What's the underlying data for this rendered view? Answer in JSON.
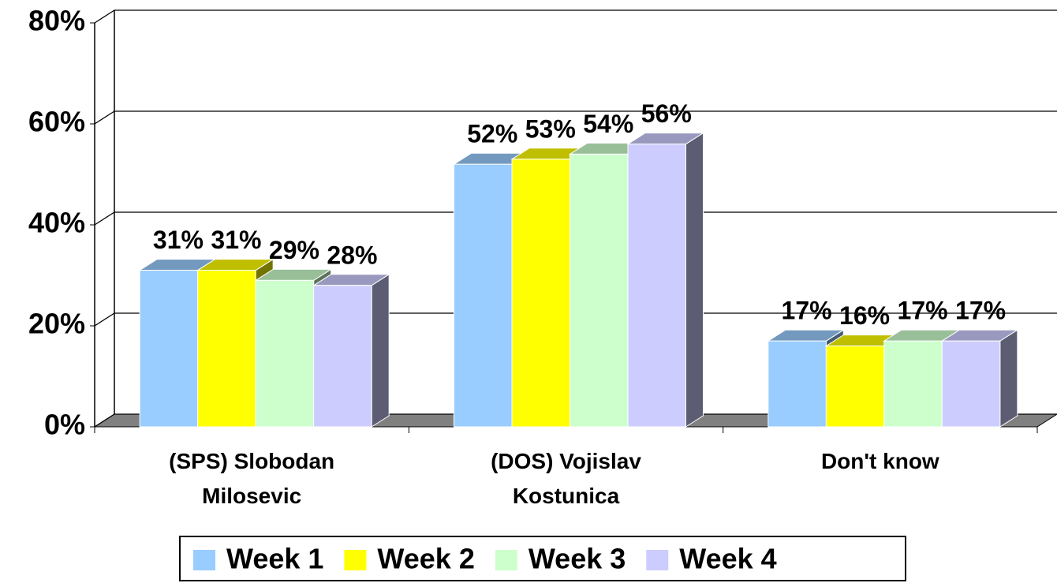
{
  "chart_data": {
    "type": "bar3d",
    "categories": [
      "(SPS) Slobodan Milosevic",
      "(DOS) Vojislav Kostunica",
      "Don't know"
    ],
    "series": [
      {
        "name": "Week 1",
        "color": "#99ccff",
        "values": [
          31,
          52,
          17
        ],
        "value_labels": [
          "31%",
          "52%",
          "17%"
        ]
      },
      {
        "name": "Week 2",
        "color": "#ffff00",
        "values": [
          31,
          53,
          16
        ],
        "value_labels": [
          "31%",
          "53%",
          "16%"
        ]
      },
      {
        "name": "Week 3",
        "color": "#ccffcc",
        "values": [
          29,
          54,
          17
        ],
        "value_labels": [
          "29%",
          "54%",
          "17%"
        ]
      },
      {
        "name": "Week 4",
        "color": "#ccccff",
        "values": [
          28,
          56,
          17
        ],
        "value_labels": [
          "28%",
          "56%",
          "17%"
        ]
      }
    ],
    "ylim": [
      0,
      80
    ],
    "yticks": [
      {
        "value": 0,
        "label": "0%"
      },
      {
        "value": 20,
        "label": "20%"
      },
      {
        "value": 40,
        "label": "40%"
      },
      {
        "value": 60,
        "label": "60%"
      },
      {
        "value": 80,
        "label": "80%"
      }
    ],
    "grid": true,
    "legend": "bottom"
  }
}
